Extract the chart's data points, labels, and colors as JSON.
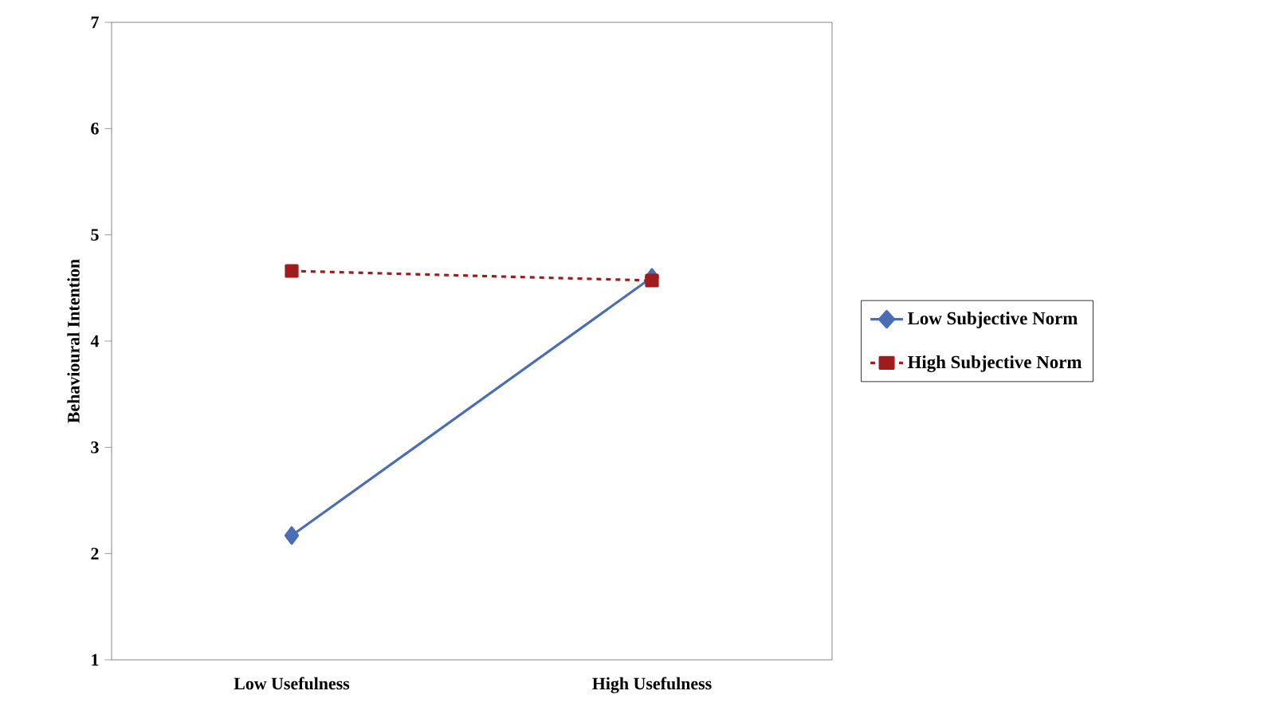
{
  "chart_data": {
    "type": "line",
    "ylabel": "Behavioural Intention",
    "categories": [
      "Low Usefulness",
      "High Usefulness"
    ],
    "series": [
      {
        "name": "Low Subjective Norm",
        "color": "#4a6db5",
        "values": [
          2.17,
          4.6
        ],
        "marker": "diamond",
        "line_style": "solid"
      },
      {
        "name": "High Subjective Norm",
        "color": "#a01c1c",
        "values": [
          4.66,
          4.57
        ],
        "marker": "square",
        "line_style": "dashed"
      }
    ],
    "ylim": [
      1,
      7
    ],
    "yticks": [
      1,
      2,
      3,
      4,
      5,
      6,
      7
    ],
    "grid": false,
    "legend": "right"
  }
}
